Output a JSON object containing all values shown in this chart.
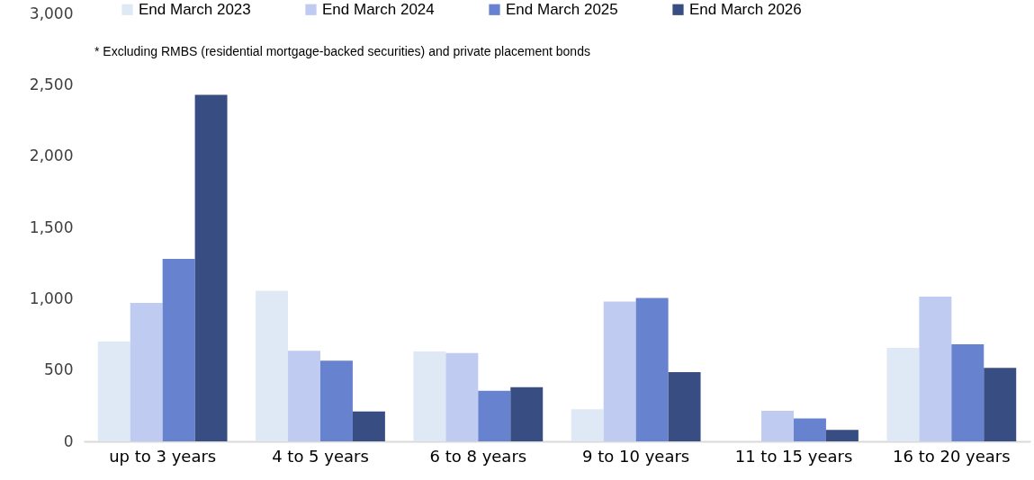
{
  "chart_data": {
    "type": "bar",
    "categories": [
      "up to 3 years",
      "4 to 5 years",
      "6 to 8 years",
      "9 to 10 years",
      "11 to 15 years",
      "16 to 20 years"
    ],
    "series": [
      {
        "name": "End March 2023",
        "color": "#dfe9f5",
        "values": [
          700,
          1055,
          630,
          225,
          0,
          655
        ]
      },
      {
        "name": "End March 2024",
        "color": "#bfcbf0",
        "values": [
          970,
          635,
          620,
          980,
          215,
          1015
        ]
      },
      {
        "name": "End March 2025",
        "color": "#6783d0",
        "values": [
          1280,
          565,
          355,
          1005,
          160,
          680
        ]
      },
      {
        "name": "End March 2026",
        "color": "#384e82",
        "values": [
          2430,
          210,
          380,
          485,
          80,
          515
        ]
      }
    ],
    "ylim": [
      0,
      3000
    ],
    "yticks": [
      0,
      500,
      {
        "value": 1000,
        "label": "1,000"
      },
      {
        "value": 1500,
        "label": "1,500"
      },
      {
        "value": 2000,
        "label": "2,000"
      },
      {
        "value": 2500,
        "label": "2,500"
      },
      {
        "value": 3000,
        "label": "3,000"
      }
    ],
    "grid": false,
    "legend": "top",
    "annotations": [
      "* Excluding RMBS (residential mortgage-backed securities) and private placement bonds"
    ]
  }
}
